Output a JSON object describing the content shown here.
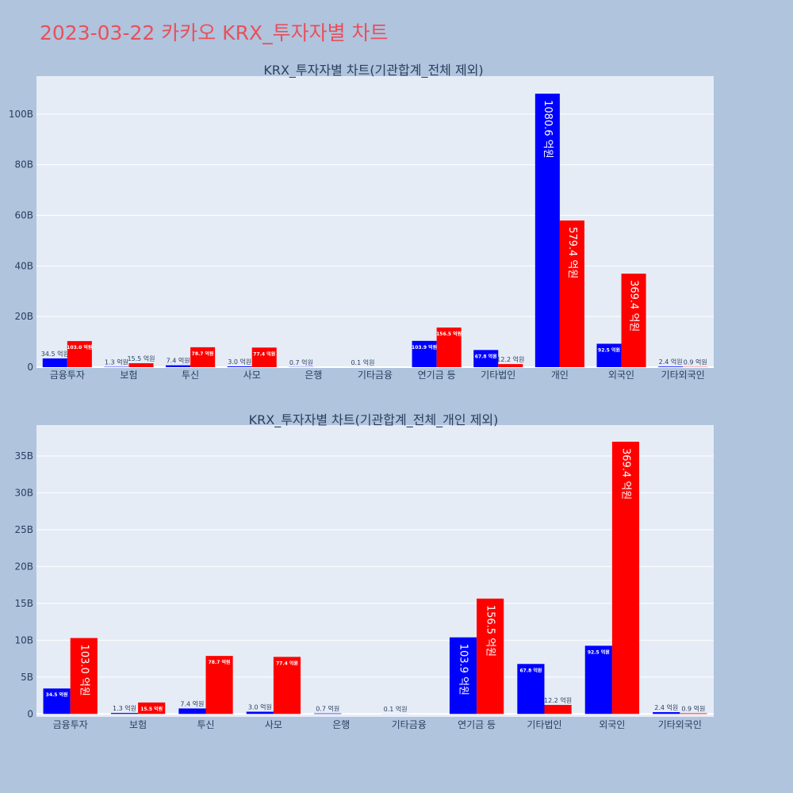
{
  "page_title": "2023-03-22 카카오 KRX_투자자별 차트",
  "colors": {
    "buy": "#0000ff",
    "sell": "#ff0000",
    "plot_bg": "#e5ecf6",
    "page_bg": "#b0c4de",
    "title": "#e8505b"
  },
  "chart_data": [
    {
      "type": "bar",
      "title": "KRX_투자자별 차트(기관합계_전체 제외)",
      "categories": [
        "금융투자",
        "보험",
        "투신",
        "사모",
        "은행",
        "기타금융",
        "연기금 등",
        "기타법인",
        "개인",
        "외국인",
        "기타외국인"
      ],
      "series": [
        {
          "color": "#0000ff",
          "values": [
            3.45,
            0.13,
            0.74,
            0.3,
            0.07,
            0.01,
            10.39,
            6.78,
            108.06,
            9.25,
            0.24
          ],
          "labels": [
            "34.5 억원",
            "1.3 억원",
            "7.4 억원",
            "3.0 억원",
            "0.7 억원",
            "0.1 억원",
            "103.9 억원",
            "67.8 억원",
            "1080.6 억원",
            "92.5 억원",
            "2.4 억원"
          ]
        },
        {
          "color": "#ff0000",
          "values": [
            10.3,
            1.55,
            7.87,
            7.74,
            0,
            0,
            15.65,
            1.22,
            57.94,
            36.94,
            0.09
          ],
          "labels": [
            "103.0 억원",
            "15.5 억원",
            "78.7 억원",
            "77.4 억원",
            "",
            "",
            "156.5 억원",
            "12.2 억원",
            "579.4 억원",
            "369.4 억원",
            "0.9 억원"
          ]
        }
      ],
      "ylim": [
        0,
        115
      ],
      "yticks": [
        0,
        20,
        40,
        60,
        80,
        100
      ],
      "ytick_labels": [
        "0",
        "20B",
        "40B",
        "60B",
        "80B",
        "100B"
      ],
      "grid": true
    },
    {
      "type": "bar",
      "title": "KRX_투자자별 차트(기관합계_전체_개인 제외)",
      "categories": [
        "금융투자",
        "보험",
        "투신",
        "사모",
        "은행",
        "기타금융",
        "연기금 등",
        "기타법인",
        "외국인",
        "기타외국인"
      ],
      "series": [
        {
          "color": "#0000ff",
          "values": [
            3.45,
            0.13,
            0.74,
            0.3,
            0.07,
            0.01,
            10.39,
            6.78,
            9.25,
            0.24
          ],
          "labels": [
            "34.5 억원",
            "1.3 억원",
            "7.4 억원",
            "3.0 억원",
            "0.7 억원",
            "0.1 억원",
            "103.9 억원",
            "67.8 억원",
            "92.5 억원",
            "2.4 억원"
          ]
        },
        {
          "color": "#ff0000",
          "values": [
            10.3,
            1.55,
            7.87,
            7.74,
            0,
            0,
            15.65,
            1.22,
            36.94,
            0.09
          ],
          "labels": [
            "103.0 억원",
            "15.5 억원",
            "78.7 억원",
            "77.4 억원",
            "",
            "",
            "156.5 억원",
            "12.2 억원",
            "369.4 억원",
            "0.9 억원"
          ]
        }
      ],
      "ylim": [
        -0.4,
        39.2
      ],
      "yticks": [
        0,
        5,
        10,
        15,
        20,
        25,
        30,
        35
      ],
      "ytick_labels": [
        "0",
        "5B",
        "10B",
        "15B",
        "20B",
        "25B",
        "30B",
        "35B"
      ],
      "grid": true
    }
  ]
}
